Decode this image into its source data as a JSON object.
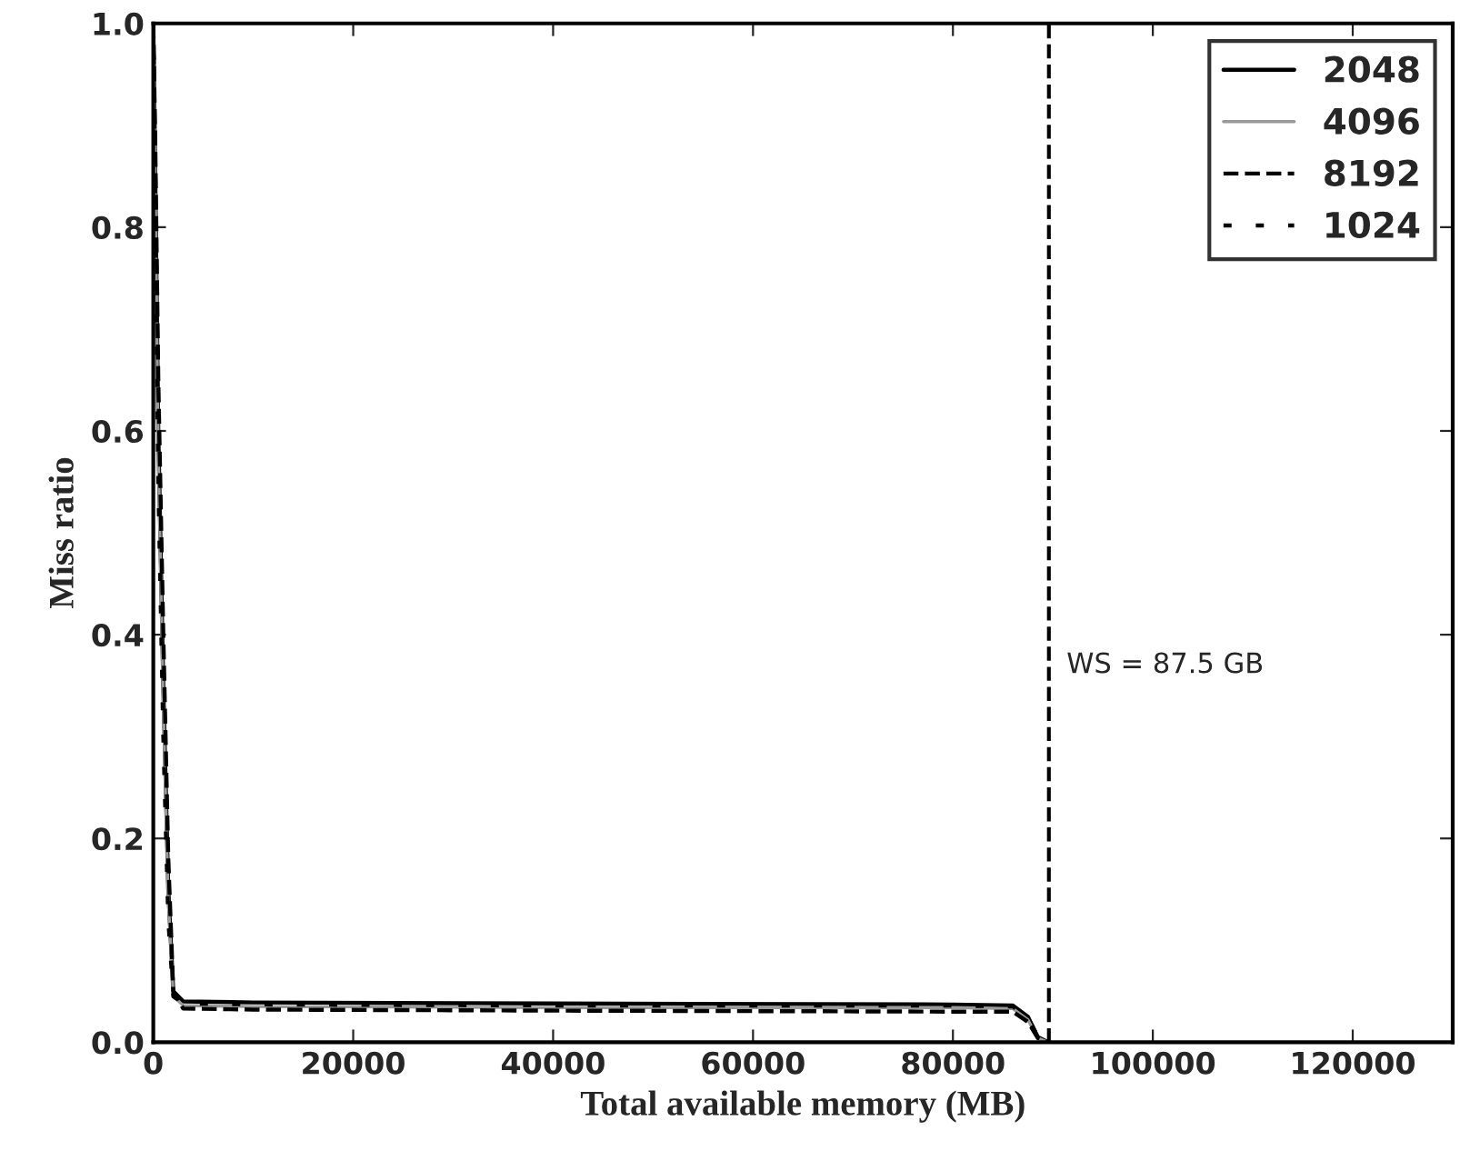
{
  "chart_data": {
    "type": "line",
    "xlabel": "Total available memory (MB)",
    "ylabel": "Miss ratio",
    "xlim": [
      0,
      130000
    ],
    "xticks": [
      0,
      20000,
      40000,
      60000,
      80000,
      100000,
      120000
    ],
    "ylim": [
      0,
      1.0
    ],
    "yticks": [
      {
        "value": 0,
        "label": "0.0"
      },
      0.2,
      0.4,
      0.6,
      0.8,
      {
        "value": 1,
        "label": "1.0"
      }
    ],
    "grid": false,
    "legend": "top right",
    "marker": "none",
    "series": [
      {
        "name": "2048",
        "color": "#000000",
        "line_style": "solid",
        "x": [
          0,
          200,
          500,
          1000,
          1500,
          2000,
          3000,
          10000,
          40000,
          80000,
          86000,
          87500,
          88500,
          89500
        ],
        "values": [
          1.0,
          0.85,
          0.6,
          0.35,
          0.15,
          0.05,
          0.04,
          0.039,
          0.038,
          0.037,
          0.036,
          0.025,
          0.005,
          0.0
        ]
      },
      {
        "name": "4096",
        "color": "#999999",
        "line_style": "solid",
        "x": [
          0,
          200,
          500,
          1000,
          1500,
          2000,
          3000,
          10000,
          40000,
          80000,
          86000,
          87500,
          88500,
          89500
        ],
        "values": [
          1.0,
          0.84,
          0.58,
          0.33,
          0.14,
          0.045,
          0.036,
          0.035,
          0.034,
          0.034,
          0.033,
          0.022,
          0.004,
          0.0
        ]
      },
      {
        "name": "8192",
        "color": "#000000",
        "line_style": "dashed",
        "x": [
          0,
          200,
          500,
          1000,
          1500,
          2000,
          3000,
          10000,
          40000,
          80000,
          86000,
          87500,
          88500,
          89500
        ],
        "values": [
          1.0,
          0.88,
          0.65,
          0.4,
          0.18,
          0.05,
          0.033,
          0.032,
          0.031,
          0.03,
          0.03,
          0.02,
          0.004,
          0.0
        ]
      },
      {
        "name": "1024",
        "color": "#000000",
        "line_style": "dotted",
        "x": [
          0,
          200,
          500,
          1000,
          1500,
          2000,
          3000,
          10000,
          40000,
          80000,
          86000,
          87500,
          88500,
          89500
        ],
        "values": [
          1.0,
          0.82,
          0.55,
          0.3,
          0.12,
          0.045,
          0.038,
          0.037,
          0.036,
          0.036,
          0.035,
          0.024,
          0.005,
          0.0
        ]
      }
    ],
    "ref_lines": [
      {
        "axis": "x",
        "value": 89600,
        "color": "#000000",
        "line_style": "dashed"
      }
    ],
    "annotations": [
      "WS = 87.5 GB"
    ]
  }
}
